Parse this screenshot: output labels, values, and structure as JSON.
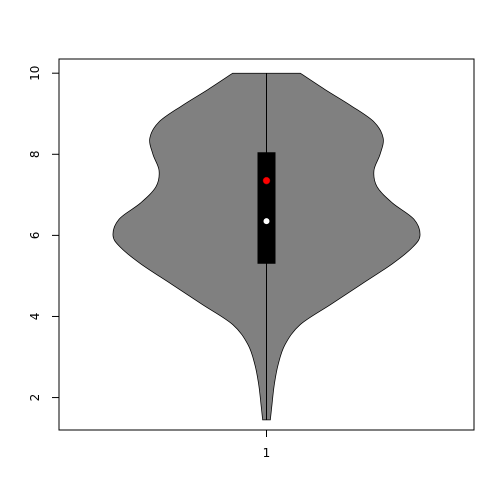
{
  "chart_data": {
    "type": "violin",
    "title": "",
    "xlabel": "",
    "ylabel": "",
    "categories": [
      "1"
    ],
    "ylim": [
      1.2,
      10.35
    ],
    "y_ticks": [
      2,
      4,
      6,
      8,
      10
    ],
    "y_tick_labels": [
      "2",
      "4",
      "6",
      "8",
      "10"
    ],
    "x_tick_labels": [
      "1"
    ],
    "series": [
      {
        "category": "1",
        "min": 1.45,
        "max": 10.0,
        "q1": 5.3,
        "median": 6.35,
        "q3": 8.05,
        "mean": 7.35,
        "density_profile": [
          [
            1.45,
            0.025
          ],
          [
            1.8,
            0.035
          ],
          [
            2.3,
            0.05
          ],
          [
            2.8,
            0.075
          ],
          [
            3.3,
            0.12
          ],
          [
            3.8,
            0.22
          ],
          [
            4.3,
            0.42
          ],
          [
            4.8,
            0.62
          ],
          [
            5.3,
            0.82
          ],
          [
            5.7,
            0.95
          ],
          [
            6.0,
            1.0
          ],
          [
            6.4,
            0.96
          ],
          [
            6.8,
            0.82
          ],
          [
            7.2,
            0.72
          ],
          [
            7.6,
            0.7
          ],
          [
            8.0,
            0.74
          ],
          [
            8.4,
            0.76
          ],
          [
            8.8,
            0.7
          ],
          [
            9.2,
            0.55
          ],
          [
            9.6,
            0.38
          ],
          [
            10.0,
            0.22
          ]
        ]
      }
    ],
    "colors": {
      "violin_fill": "#808080",
      "box_fill": "#000000",
      "median_point": "#ffffff",
      "mean_point": "#ff0000",
      "outline": "#000000"
    },
    "grid": false,
    "legend": "none"
  }
}
